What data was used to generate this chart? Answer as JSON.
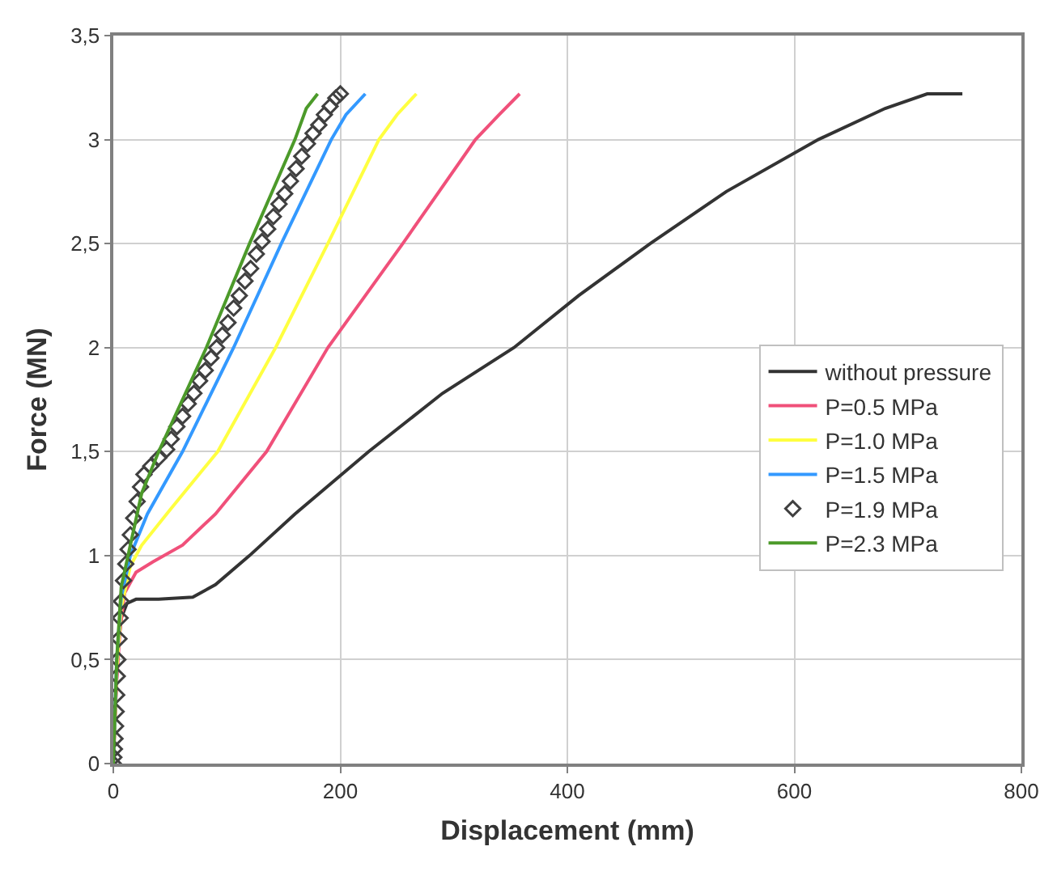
{
  "chart_data": {
    "type": "line",
    "xlabel": "Displacement (mm)",
    "ylabel": "Force (MN)",
    "xlim": [
      0,
      800
    ],
    "xticks": [
      0,
      200,
      400,
      600,
      800
    ],
    "ylim": [
      0,
      3.5
    ],
    "yticks": [
      0,
      {
        "value": 0.5,
        "label": "0,5"
      },
      1,
      {
        "value": 1.5,
        "label": "1,5"
      },
      2,
      {
        "value": 2.5,
        "label": "2,5"
      },
      3,
      {
        "value": 3.5,
        "label": "3,5"
      }
    ],
    "grid": true,
    "legend": "right",
    "marker": "none",
    "line_style": "solid",
    "series": [
      {
        "name": "without pressure",
        "color": "#333333",
        "x": [
          0,
          2,
          4,
          7,
          12,
          20,
          40,
          70,
          90,
          120,
          160,
          225,
          290,
          353,
          410,
          473,
          540,
          621,
          680,
          717,
          748
        ],
        "values": [
          0,
          0.3,
          0.55,
          0.7,
          0.77,
          0.79,
          0.79,
          0.8,
          0.86,
          1.0,
          1.2,
          1.5,
          1.78,
          2.0,
          2.25,
          2.5,
          2.75,
          3.0,
          3.15,
          3.22,
          3.22
        ]
      },
      {
        "name": "P=0.5 MPa",
        "color": "#f0507a",
        "x": [
          0,
          3,
          6,
          10,
          20,
          35,
          61,
          90,
          135,
          189,
          255,
          319,
          340,
          358
        ],
        "values": [
          0,
          0.4,
          0.65,
          0.82,
          0.92,
          0.97,
          1.05,
          1.2,
          1.5,
          2.0,
          2.5,
          3.0,
          3.12,
          3.22
        ]
      },
      {
        "name": "P=1.0 MPa",
        "color": "#ffff40",
        "x": [
          0,
          3,
          7,
          15,
          25,
          50,
          92,
          143,
          189,
          234,
          250,
          267
        ],
        "values": [
          0,
          0.45,
          0.75,
          0.95,
          1.05,
          1.22,
          1.5,
          2.0,
          2.5,
          3.0,
          3.12,
          3.22
        ]
      },
      {
        "name": "P=1.5 MPa",
        "color": "#3399ff",
        "x": [
          0,
          3,
          7,
          15,
          30,
          61,
          106,
          148,
          192,
          205,
          222
        ],
        "values": [
          0,
          0.5,
          0.8,
          1.0,
          1.2,
          1.5,
          2.0,
          2.5,
          3.0,
          3.12,
          3.22
        ]
      },
      {
        "name": "P=1.9 MPa",
        "color": "#404040",
        "type": "scatter",
        "marker": "diamond",
        "x": [
          0,
          0.5,
          1,
          1.5,
          2,
          2.5,
          3,
          3.5,
          4,
          5,
          6,
          7,
          9,
          11,
          13,
          15,
          18,
          21,
          24,
          27,
          33,
          40,
          47,
          51,
          56,
          61,
          66,
          71,
          76,
          81,
          86,
          91,
          96,
          101,
          106,
          111,
          116,
          121,
          126,
          131,
          136,
          141,
          146,
          151,
          156,
          161,
          166,
          171,
          176,
          181,
          186,
          191,
          196,
          200
        ],
        "values": [
          0,
          0.03,
          0.07,
          0.12,
          0.18,
          0.25,
          0.33,
          0.42,
          0.5,
          0.6,
          0.7,
          0.78,
          0.88,
          0.96,
          1.03,
          1.1,
          1.18,
          1.26,
          1.33,
          1.39,
          1.43,
          1.47,
          1.51,
          1.56,
          1.62,
          1.67,
          1.73,
          1.78,
          1.84,
          1.89,
          1.95,
          2.0,
          2.06,
          2.12,
          2.19,
          2.25,
          2.32,
          2.38,
          2.45,
          2.51,
          2.57,
          2.63,
          2.69,
          2.74,
          2.8,
          2.86,
          2.92,
          2.98,
          3.03,
          3.07,
          3.12,
          3.16,
          3.2,
          3.22
        ]
      },
      {
        "name": "P=2.3 MPa",
        "color": "#4c9a2a",
        "x": [
          0,
          3,
          7,
          15,
          25,
          40,
          82,
          120,
          160,
          170,
          180
        ],
        "values": [
          0,
          0.5,
          0.85,
          1.05,
          1.3,
          1.5,
          2.0,
          2.5,
          3.0,
          3.15,
          3.22
        ]
      }
    ]
  }
}
